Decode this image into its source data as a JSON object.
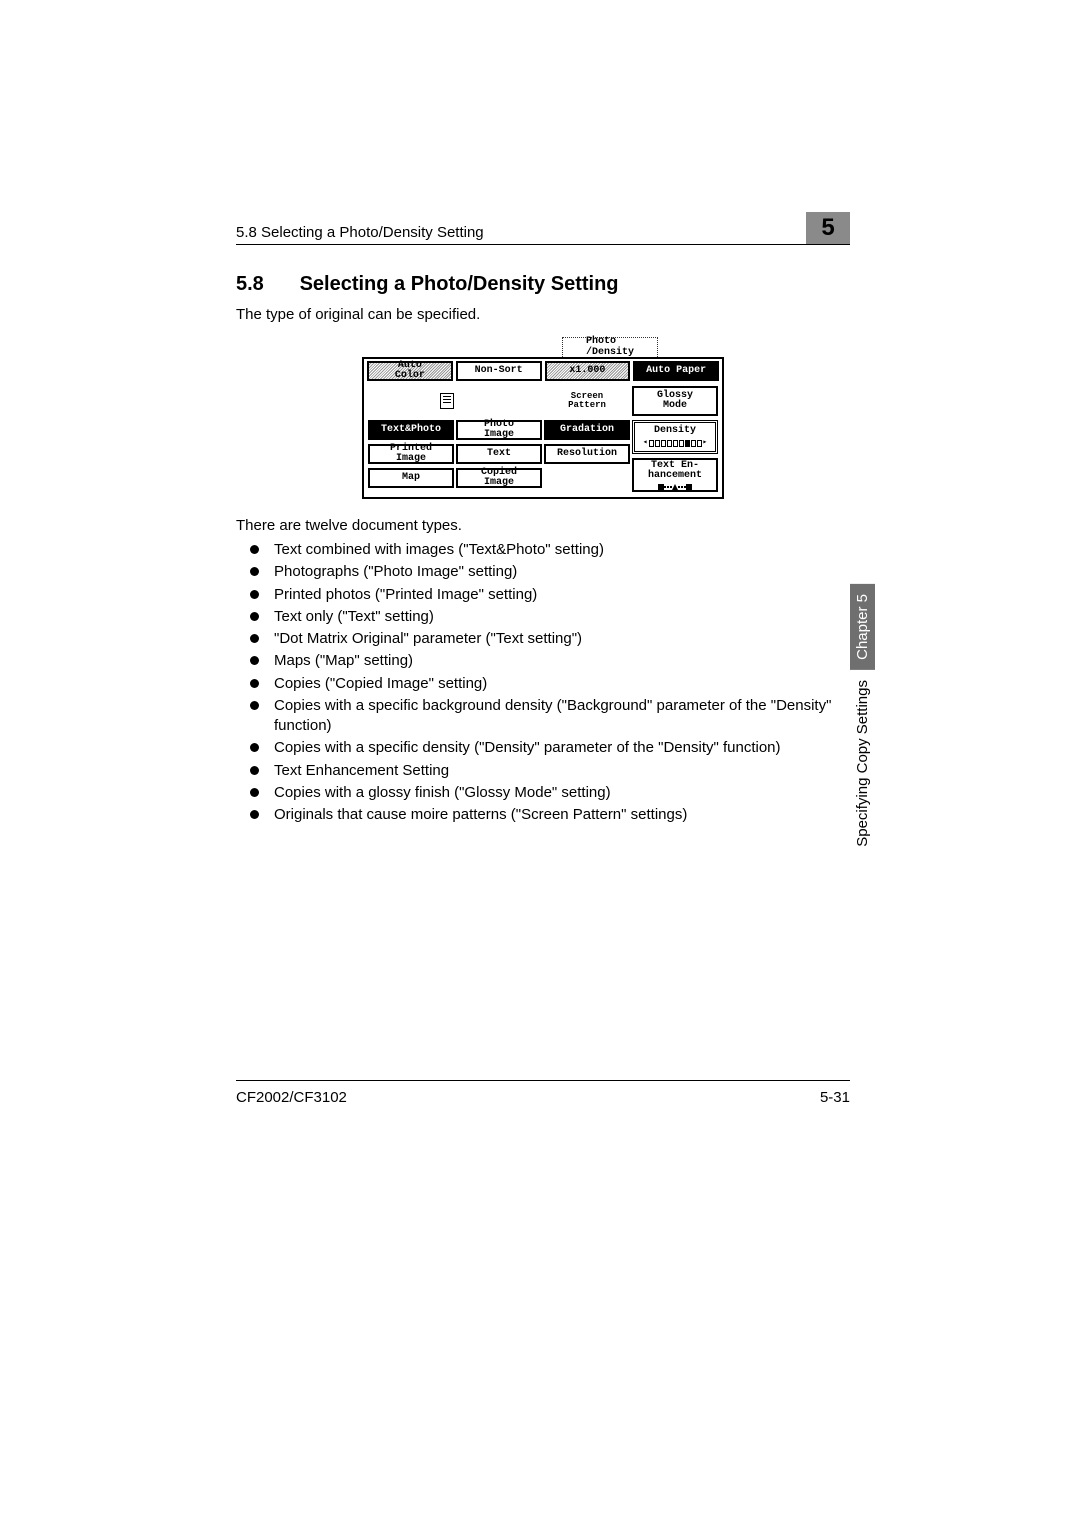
{
  "header": {
    "running_title": "5.8 Selecting a Photo/Density Setting",
    "chapter_number": "5"
  },
  "section": {
    "number": "5.8",
    "title": "Selecting a Photo/Density Setting",
    "intro": "The type of original can be specified."
  },
  "lcd": {
    "tab_label": "Photo\n/Density",
    "top_row": {
      "auto_color": "Auto\nColor",
      "non_sort": "Non-Sort",
      "zoom": "x1.000",
      "auto_paper": "Auto Paper"
    },
    "col1": {
      "text_photo": "Text&Photo",
      "printed_image": "Printed\nImage",
      "map": "Map"
    },
    "col2": {
      "photo_image": "Photo\nImage",
      "text": "Text",
      "copied_image": "Copied\nImage"
    },
    "col3": {
      "screen_pattern": "Screen\nPattern",
      "gradation": "Gradation",
      "resolution": "Resolution"
    },
    "col4": {
      "glossy_mode": "Glossy\nMode",
      "density": "Density",
      "text_enhancement": "Text En-\nhancement"
    }
  },
  "body": {
    "lead": "There are twelve document types.",
    "items": [
      "Text combined with images (\"Text&Photo\" setting)",
      "Photographs (\"Photo Image\" setting)",
      "Printed photos (\"Printed Image\" setting)",
      "Text only (\"Text\" setting)",
      "\"Dot Matrix Original\" parameter (\"Text setting\")",
      "Maps (\"Map\" setting)",
      "Copies (\"Copied Image\" setting)",
      "Copies with a specific background density (\"Background\" parameter of the \"Density\" function)",
      "Copies with a specific density (\"Density\" parameter of the \"Density\" function)",
      "Text Enhancement Setting",
      "Copies with a glossy finish (\"Glossy Mode\" setting)",
      "Originals that cause moire patterns (\"Screen Pattern\" settings)"
    ]
  },
  "side": {
    "chapter_label": "Chapter 5",
    "section_group": "Specifying Copy Settings"
  },
  "footer": {
    "model": "CF2002/CF3102",
    "page": "5-31"
  },
  "colors": {
    "tab_bg": "#6f6f6f",
    "chapnum_bg": "#8a8a8a"
  }
}
